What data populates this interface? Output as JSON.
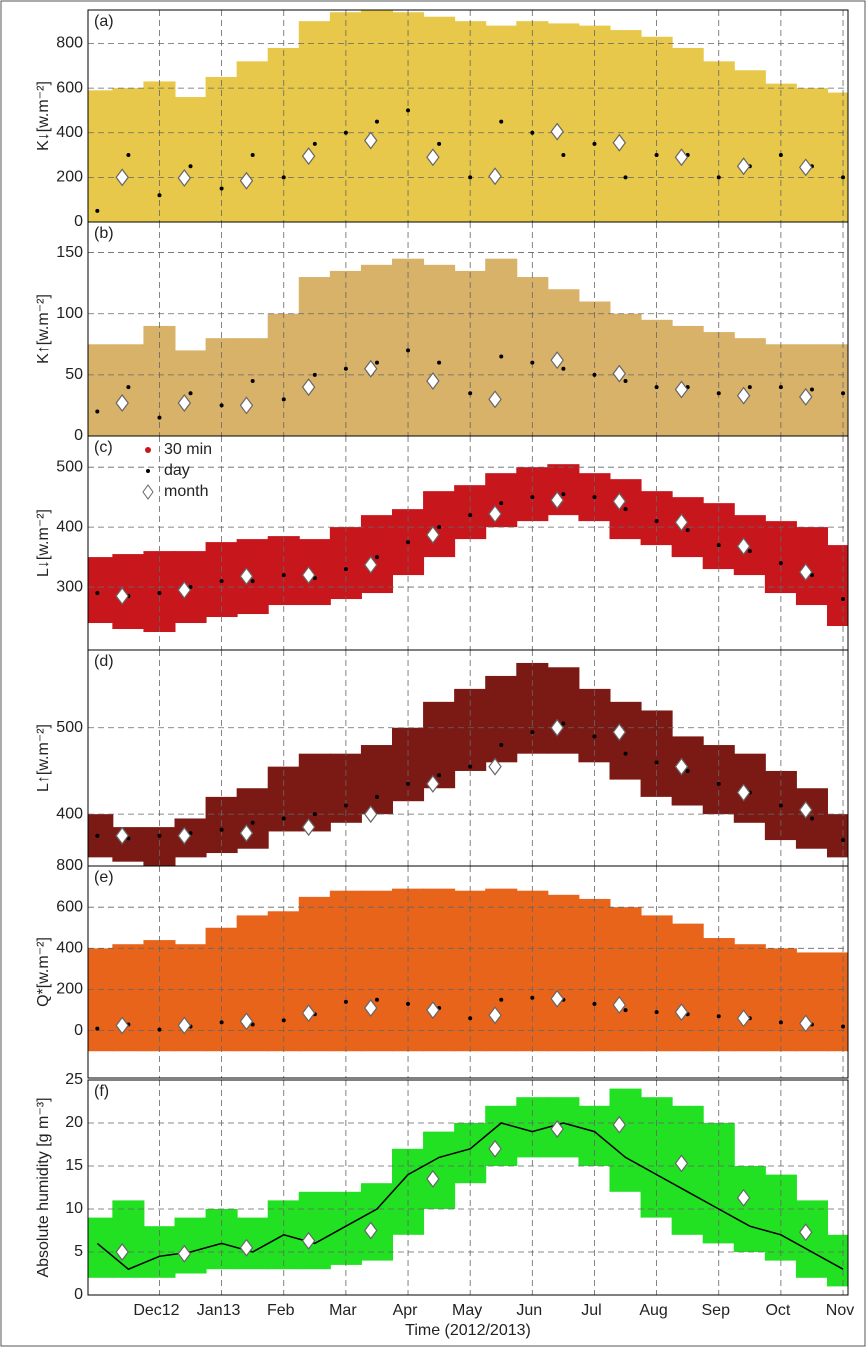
{
  "chart_data": [
    {
      "type": "scatter",
      "label": "(a)",
      "ylabel": "K↓[w.m⁻²]",
      "color": "#e8c84a",
      "ylim": [
        0,
        950
      ],
      "yticks": [
        0,
        200,
        400,
        600,
        800
      ],
      "x": [
        0,
        0.5,
        1,
        1.5,
        2,
        2.5,
        3,
        3.5,
        4,
        4.5,
        5,
        5.5,
        6,
        6.5,
        7,
        7.5,
        8,
        8.5,
        9,
        9.5,
        10,
        10.5,
        11,
        11.5,
        12
      ],
      "series": [
        {
          "color": "#e8c84a",
          "low": [
            0,
            0,
            0,
            0,
            0,
            0,
            0,
            0,
            0,
            0,
            0,
            0,
            0,
            0,
            0,
            0,
            0,
            0,
            0,
            0,
            0,
            0,
            0,
            0,
            0
          ],
          "high": [
            590,
            600,
            630,
            560,
            650,
            720,
            780,
            900,
            940,
            950,
            940,
            920,
            900,
            880,
            900,
            890,
            880,
            860,
            830,
            780,
            720,
            680,
            620,
            600,
            580
          ]
        },
        {
          "color": "#000000",
          "values": [
            50,
            300,
            120,
            250,
            150,
            300,
            200,
            350,
            400,
            450,
            500,
            350,
            200,
            450,
            400,
            300,
            350,
            200,
            300,
            300,
            200,
            250,
            300,
            250,
            200
          ]
        },
        {
          "color": "#ffffff",
          "x": [
            0.4,
            1.4,
            2.4,
            3.4,
            4.4,
            5.4,
            6.4,
            7.4,
            8.4,
            9.4,
            10.4,
            11.4
          ],
          "values": [
            200,
            197,
            185,
            295,
            365,
            290,
            205,
            405,
            355,
            290,
            250,
            245
          ]
        }
      ]
    },
    {
      "type": "scatter",
      "label": "(b)",
      "ylabel": "K↑[w.m⁻²]",
      "color": "#d9b26a",
      "ylim": [
        0,
        175
      ],
      "yticks": [
        0,
        50,
        100,
        150
      ],
      "x": [
        0,
        0.5,
        1,
        1.5,
        2,
        2.5,
        3,
        3.5,
        4,
        4.5,
        5,
        5.5,
        6,
        6.5,
        7,
        7.5,
        8,
        8.5,
        9,
        9.5,
        10,
        10.5,
        11,
        11.5,
        12
      ],
      "series": [
        {
          "color": "#d9b26a",
          "low": [
            0,
            0,
            0,
            0,
            0,
            0,
            0,
            0,
            0,
            0,
            0,
            0,
            0,
            0,
            0,
            0,
            0,
            0,
            0,
            0,
            0,
            0,
            0,
            0,
            0
          ],
          "high": [
            75,
            75,
            90,
            70,
            80,
            80,
            100,
            130,
            135,
            140,
            145,
            140,
            135,
            145,
            130,
            120,
            110,
            100,
            95,
            90,
            85,
            80,
            75,
            75,
            75
          ]
        },
        {
          "color": "#000000",
          "values": [
            20,
            40,
            15,
            35,
            25,
            45,
            30,
            50,
            55,
            60,
            70,
            60,
            35,
            65,
            60,
            55,
            50,
            45,
            40,
            40,
            35,
            40,
            40,
            38,
            35
          ]
        },
        {
          "color": "#ffffff",
          "x": [
            0.4,
            1.4,
            2.4,
            3.4,
            4.4,
            5.4,
            6.4,
            7.4,
            8.4,
            9.4,
            10.4,
            11.4
          ],
          "values": [
            27,
            27,
            25,
            40,
            55,
            45,
            30,
            62,
            51,
            38,
            33,
            32
          ]
        }
      ]
    },
    {
      "type": "scatter",
      "label": "(c)",
      "ylabel": "L↓[w.m⁻²]",
      "color": "#c8161d",
      "ylim": [
        195,
        552
      ],
      "yticks": [
        300,
        400,
        500
      ],
      "x": [
        0,
        0.5,
        1,
        1.5,
        2,
        2.5,
        3,
        3.5,
        4,
        4.5,
        5,
        5.5,
        6,
        6.5,
        7,
        7.5,
        8,
        8.5,
        9,
        9.5,
        10,
        10.5,
        11,
        11.5,
        12
      ],
      "series": [
        {
          "name": "30 min",
          "color": "#c8161d",
          "low": [
            240,
            230,
            225,
            240,
            250,
            255,
            270,
            270,
            280,
            290,
            320,
            350,
            380,
            400,
            410,
            420,
            410,
            380,
            370,
            350,
            330,
            320,
            290,
            270,
            235
          ],
          "high": [
            350,
            355,
            360,
            360,
            375,
            380,
            385,
            380,
            400,
            420,
            430,
            460,
            470,
            490,
            500,
            505,
            490,
            480,
            460,
            450,
            440,
            420,
            410,
            400,
            370
          ]
        },
        {
          "name": "day",
          "color": "#000000",
          "values": [
            290,
            285,
            290,
            300,
            310,
            310,
            320,
            315,
            330,
            350,
            375,
            400,
            420,
            440,
            450,
            455,
            450,
            430,
            410,
            395,
            370,
            360,
            340,
            320,
            280
          ]
        },
        {
          "name": "month",
          "color": "#ffffff",
          "x": [
            0.4,
            1.4,
            2.4,
            3.4,
            4.4,
            5.4,
            6.4,
            7.4,
            8.4,
            9.4,
            10.4,
            11.4
          ],
          "values": [
            285,
            295,
            318,
            320,
            337,
            387,
            422,
            445,
            443,
            408,
            368,
            325
          ]
        }
      ]
    },
    {
      "type": "scatter",
      "label": "(d)",
      "ylabel": "L↑[w.m⁻²]",
      "color": "#7b1a14",
      "ylim": [
        340,
        590
      ],
      "yticks": [
        400,
        500
      ],
      "x": [
        0,
        0.5,
        1,
        1.5,
        2,
        2.5,
        3,
        3.5,
        4,
        4.5,
        5,
        5.5,
        6,
        6.5,
        7,
        7.5,
        8,
        8.5,
        9,
        9.5,
        10,
        10.5,
        11,
        11.5,
        12
      ],
      "series": [
        {
          "color": "#7b1a14",
          "low": [
            350,
            345,
            340,
            350,
            355,
            360,
            380,
            380,
            390,
            400,
            415,
            430,
            450,
            460,
            470,
            470,
            460,
            440,
            420,
            410,
            400,
            390,
            370,
            360,
            350
          ],
          "high": [
            400,
            385,
            385,
            395,
            420,
            430,
            455,
            470,
            470,
            480,
            500,
            530,
            545,
            560,
            575,
            570,
            545,
            530,
            520,
            490,
            480,
            470,
            450,
            430,
            400
          ]
        },
        {
          "color": "#000000",
          "values": [
            375,
            372,
            375,
            378,
            382,
            390,
            395,
            400,
            410,
            420,
            435,
            445,
            455,
            480,
            495,
            505,
            490,
            470,
            460,
            450,
            435,
            425,
            410,
            395,
            370
          ]
        },
        {
          "color": "#ffffff",
          "x": [
            0.4,
            1.4,
            2.4,
            3.4,
            4.4,
            5.4,
            6.4,
            7.4,
            8.4,
            9.4,
            10.4,
            11.4
          ],
          "values": [
            375,
            375,
            378,
            385,
            400,
            435,
            455,
            500,
            495,
            455,
            425,
            405
          ]
        }
      ]
    },
    {
      "type": "scatter",
      "label": "(e)",
      "ylabel": "Q*[w.m⁻²]",
      "color": "#e8641a",
      "ylim": [
        -230,
        800
      ],
      "yticks": [
        0,
        200,
        400,
        600,
        800
      ],
      "x": [
        0,
        0.5,
        1,
        1.5,
        2,
        2.5,
        3,
        3.5,
        4,
        4.5,
        5,
        5.5,
        6,
        6.5,
        7,
        7.5,
        8,
        8.5,
        9,
        9.5,
        10,
        10.5,
        11,
        11.5,
        12
      ],
      "series": [
        {
          "color": "#e8641a",
          "low": [
            -100,
            -100,
            -100,
            -100,
            -100,
            -100,
            -100,
            -100,
            -100,
            -100,
            -100,
            -100,
            -100,
            -100,
            -100,
            -100,
            -100,
            -100,
            -100,
            -100,
            -100,
            -100,
            -100,
            -100,
            -100
          ],
          "high": [
            400,
            420,
            440,
            420,
            500,
            560,
            580,
            650,
            680,
            680,
            690,
            690,
            680,
            690,
            680,
            660,
            640,
            600,
            560,
            520,
            450,
            420,
            400,
            380,
            380
          ]
        },
        {
          "color": "#000000",
          "values": [
            10,
            30,
            5,
            20,
            40,
            30,
            50,
            80,
            140,
            150,
            130,
            110,
            60,
            150,
            160,
            150,
            130,
            100,
            90,
            80,
            70,
            60,
            40,
            30,
            20
          ]
        },
        {
          "color": "#ffffff",
          "x": [
            0.4,
            1.4,
            2.4,
            3.4,
            4.4,
            5.4,
            6.4,
            7.4,
            8.4,
            9.4,
            10.4,
            11.4
          ],
          "values": [
            25,
            25,
            45,
            85,
            110,
            100,
            75,
            155,
            125,
            90,
            60,
            35
          ]
        }
      ]
    },
    {
      "type": "line",
      "label": "(f)",
      "ylabel": "Absolute humidity [g m⁻³]",
      "color": "#22e022",
      "ylim": [
        0,
        25
      ],
      "yticks": [
        0,
        5,
        10,
        15,
        20,
        25
      ],
      "xlabel": "Time (2012/2013)",
      "xlim": [
        -0.15,
        12.08
      ],
      "xticks": [
        {
          "value": 1,
          "label": "Dec12"
        },
        {
          "value": 2,
          "label": "Jan13"
        },
        {
          "value": 3,
          "label": "Feb"
        },
        {
          "value": 4,
          "label": "Mar"
        },
        {
          "value": 5,
          "label": "Apr"
        },
        {
          "value": 6,
          "label": "May"
        },
        {
          "value": 7,
          "label": "Jun"
        },
        {
          "value": 8,
          "label": "Jul"
        },
        {
          "value": 9,
          "label": "Aug"
        },
        {
          "value": 10,
          "label": "Sep"
        },
        {
          "value": 11,
          "label": "Oct"
        },
        {
          "value": 12,
          "label": "Nov"
        }
      ],
      "x": [
        0,
        0.5,
        1,
        1.5,
        2,
        2.5,
        3,
        3.5,
        4,
        4.5,
        5,
        5.5,
        6,
        6.5,
        7,
        7.5,
        8,
        8.5,
        9,
        9.5,
        10,
        10.5,
        11,
        11.5,
        12
      ],
      "series": [
        {
          "color": "#22e022",
          "low": [
            2,
            2,
            2,
            2.5,
            3,
            3,
            3,
            3,
            3.5,
            4,
            7,
            10,
            13,
            15,
            16,
            16,
            15,
            12,
            9,
            7,
            6,
            5,
            4,
            2,
            1
          ],
          "high": [
            9,
            11,
            8,
            9,
            10,
            9,
            11,
            12,
            12,
            13,
            17,
            19,
            20,
            22,
            23,
            23,
            22,
            24,
            23,
            22,
            20,
            15,
            14,
            11,
            7
          ]
        },
        {
          "color": "#000000",
          "values": [
            6,
            3,
            4.5,
            5,
            6,
            5,
            7,
            6,
            8,
            10,
            14,
            16,
            17,
            20,
            19,
            20,
            19,
            16,
            14,
            12,
            10,
            8,
            7,
            5,
            3
          ]
        },
        {
          "color": "#ffffff",
          "x": [
            0.4,
            1.4,
            2.4,
            3.4,
            4.4,
            5.4,
            6.4,
            7.4,
            8.4,
            9.4,
            10.4,
            11.4
          ],
          "values": [
            5,
            4.8,
            5.5,
            6.3,
            7.5,
            13.5,
            17,
            19.3,
            19.8,
            15.3,
            11.3,
            7.3
          ]
        }
      ]
    }
  ]
}
